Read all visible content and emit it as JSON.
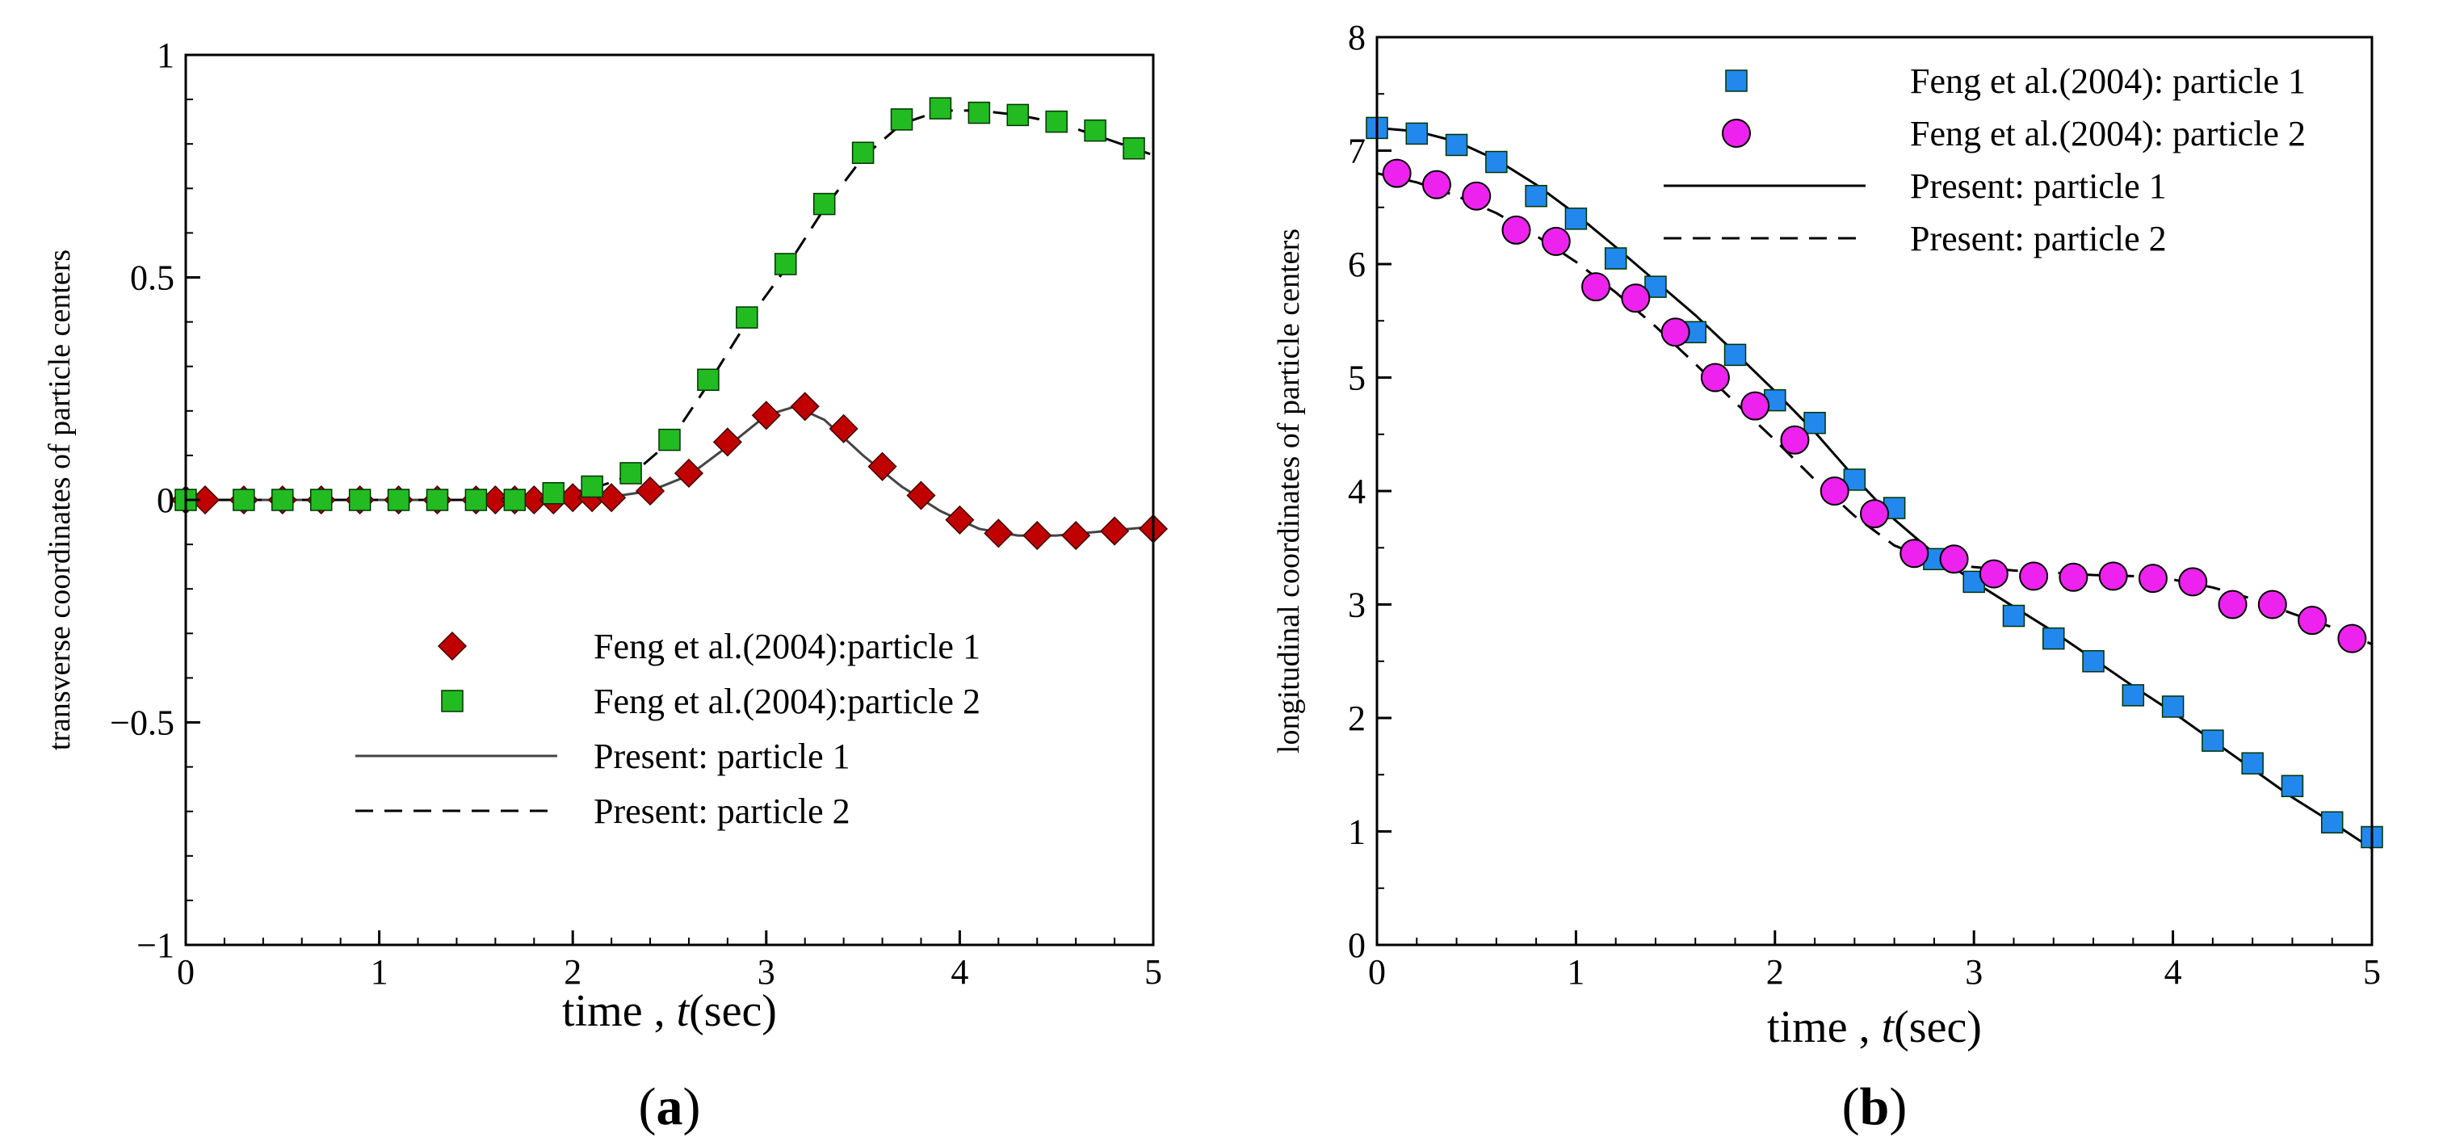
{
  "figure": {
    "panels": [
      {
        "id": "a",
        "label_open": "(",
        "label_letter": "a",
        "label_close": ")",
        "chart_data": {
          "type": "scatter",
          "title": "",
          "xlabel_prefix": "time , ",
          "xlabel_var": "t",
          "xlabel_suffix": "(sec)",
          "ylabel": "transverse coordinates of particle centers",
          "xlim": [
            0,
            5
          ],
          "ylim": [
            -1,
            1
          ],
          "xticks": [
            0,
            1,
            2,
            3,
            4,
            5
          ],
          "xtick_labels": [
            "0",
            "1",
            "2",
            "3",
            "4",
            "5"
          ],
          "yticks": [
            -1,
            -0.5,
            0,
            0.5,
            1
          ],
          "ytick_labels": [
            "−1",
            "−0.5",
            "0",
            "0.5",
            "1"
          ],
          "grid": false,
          "legend_position": "lower-right",
          "series": [
            {
              "name": "Feng et al.(2004):particle 1",
              "kind": "markers",
              "marker": "diamond",
              "color": "#c00000",
              "x": [
                0.0,
                0.1,
                0.3,
                0.5,
                0.7,
                0.9,
                1.1,
                1.3,
                1.5,
                1.6,
                1.7,
                1.8,
                1.9,
                2.0,
                2.1,
                2.2,
                2.4,
                2.6,
                2.8,
                3.0,
                3.2,
                3.4,
                3.6,
                3.8,
                4.0,
                4.2,
                4.4,
                4.6,
                4.8,
                5.0
              ],
              "y": [
                0.0,
                0.0,
                0.0,
                0.0,
                0.0,
                0.0,
                0.0,
                0.0,
                0.0,
                0.0,
                0.0,
                0.0,
                0.0,
                0.005,
                0.005,
                0.005,
                0.02,
                0.06,
                0.13,
                0.19,
                0.21,
                0.16,
                0.075,
                0.01,
                -0.045,
                -0.075,
                -0.08,
                -0.08,
                -0.07,
                -0.065
              ]
            },
            {
              "name": "Feng et al.(2004):particle 2",
              "kind": "markers",
              "marker": "square",
              "color": "#22bb22",
              "x": [
                0.0,
                0.3,
                0.5,
                0.7,
                0.9,
                1.1,
                1.3,
                1.5,
                1.7,
                1.9,
                2.1,
                2.3,
                2.5,
                2.7,
                2.9,
                3.1,
                3.3,
                3.5,
                3.7,
                3.9,
                4.1,
                4.3,
                4.5,
                4.7,
                4.9
              ],
              "y": [
                0.0,
                0.0,
                0.0,
                0.0,
                0.0,
                0.0,
                0.0,
                0.0,
                0.0,
                0.015,
                0.03,
                0.06,
                0.135,
                0.27,
                0.41,
                0.53,
                0.665,
                0.78,
                0.855,
                0.88,
                0.87,
                0.865,
                0.85,
                0.83,
                0.79
              ]
            },
            {
              "name": "Present: particle 1",
              "kind": "line",
              "dash": "solid",
              "color": "#444444",
              "x": [
                0,
                1.5,
                2.0,
                2.2,
                2.4,
                2.6,
                2.8,
                3.0,
                3.15,
                3.3,
                3.5,
                3.7,
                3.9,
                4.1,
                4.3,
                4.5,
                4.7,
                5.0
              ],
              "y": [
                0,
                0,
                0.003,
                0.007,
                0.02,
                0.055,
                0.12,
                0.19,
                0.21,
                0.18,
                0.1,
                0.03,
                -0.025,
                -0.065,
                -0.08,
                -0.08,
                -0.072,
                -0.06
              ]
            },
            {
              "name": "Present: particle 2",
              "kind": "line",
              "dash": "dashed",
              "color": "#000000",
              "x": [
                0,
                1.7,
                1.9,
                2.1,
                2.3,
                2.5,
                2.7,
                2.9,
                3.1,
                3.3,
                3.5,
                3.7,
                3.9,
                4.1,
                4.3,
                4.5,
                4.7,
                5.0
              ],
              "y": [
                0,
                0,
                0.01,
                0.025,
                0.055,
                0.13,
                0.26,
                0.4,
                0.52,
                0.655,
                0.77,
                0.845,
                0.875,
                0.875,
                0.865,
                0.848,
                0.82,
                0.775
              ]
            }
          ]
        }
      },
      {
        "id": "b",
        "label_open": "(",
        "label_letter": "b",
        "label_close": ")",
        "chart_data": {
          "type": "scatter",
          "title": "",
          "xlabel_prefix": "time , ",
          "xlabel_var": "t",
          "xlabel_suffix": "(sec)",
          "ylabel": "longitudinal coordinates of particle centers",
          "xlim": [
            0,
            5
          ],
          "ylim": [
            0,
            8
          ],
          "xticks": [
            0,
            1,
            2,
            3,
            4,
            5
          ],
          "xtick_labels": [
            "0",
            "1",
            "2",
            "3",
            "4",
            "5"
          ],
          "yticks": [
            0,
            1,
            2,
            3,
            4,
            5,
            6,
            7,
            8
          ],
          "ytick_labels": [
            "0",
            "1",
            "2",
            "3",
            "4",
            "5",
            "6",
            "7",
            "8"
          ],
          "grid": false,
          "legend_position": "top-right",
          "series": [
            {
              "name": "Feng et al.(2004): particle 1",
              "kind": "markers",
              "marker": "square",
              "color": "#2288ee",
              "x": [
                0.0,
                0.2,
                0.4,
                0.6,
                0.8,
                1.0,
                1.2,
                1.4,
                1.6,
                1.8,
                2.0,
                2.2,
                2.4,
                2.6,
                2.8,
                3.0,
                3.2,
                3.4,
                3.6,
                3.8,
                4.0,
                4.2,
                4.4,
                4.6,
                4.8,
                5.0
              ],
              "y": [
                7.2,
                7.15,
                7.05,
                6.9,
                6.6,
                6.4,
                6.05,
                5.8,
                5.4,
                5.2,
                4.8,
                4.6,
                4.1,
                3.85,
                3.4,
                3.2,
                2.9,
                2.7,
                2.5,
                2.2,
                2.1,
                1.8,
                1.6,
                1.4,
                1.08,
                0.95
              ]
            },
            {
              "name": "Feng et al.(2004): particle 2",
              "kind": "markers",
              "marker": "circle",
              "color": "#ee22ee",
              "x": [
                0.1,
                0.3,
                0.5,
                0.7,
                0.9,
                1.1,
                1.3,
                1.5,
                1.7,
                1.9,
                2.1,
                2.3,
                2.5,
                2.7,
                2.9,
                3.1,
                3.3,
                3.5,
                3.7,
                3.9,
                4.1,
                4.3,
                4.5,
                4.7,
                4.9
              ],
              "y": [
                6.8,
                6.7,
                6.6,
                6.3,
                6.2,
                5.8,
                5.7,
                5.4,
                5.0,
                4.75,
                4.45,
                4.0,
                3.8,
                3.45,
                3.4,
                3.27,
                3.25,
                3.24,
                3.25,
                3.23,
                3.2,
                3.0,
                3.0,
                2.86,
                2.7
              ]
            },
            {
              "name": "Present: particle 1",
              "kind": "line",
              "dash": "solid",
              "color": "#000000",
              "x": [
                0,
                0.2,
                0.4,
                0.6,
                0.8,
                1.0,
                1.2,
                1.4,
                1.6,
                1.8,
                2.0,
                2.2,
                2.4,
                2.6,
                2.8,
                3.0,
                3.2,
                3.4,
                3.6,
                3.8,
                4.0,
                4.2,
                4.4,
                4.6,
                4.8,
                5.0
              ],
              "y": [
                7.2,
                7.17,
                7.08,
                6.92,
                6.7,
                6.44,
                6.15,
                5.85,
                5.55,
                5.22,
                4.88,
                4.52,
                4.12,
                3.75,
                3.45,
                3.2,
                2.98,
                2.76,
                2.52,
                2.28,
                2.05,
                1.8,
                1.55,
                1.3,
                1.08,
                0.85
              ]
            },
            {
              "name": "Present: particle 2",
              "kind": "line",
              "dash": "dashed",
              "color": "#000000",
              "x": [
                0,
                0.2,
                0.4,
                0.6,
                0.8,
                1.0,
                1.2,
                1.4,
                1.6,
                1.8,
                2.0,
                2.2,
                2.4,
                2.6,
                2.8,
                2.9,
                3.0,
                3.2,
                3.4,
                3.6,
                3.8,
                4.0,
                4.2,
                4.4,
                4.6,
                4.8,
                5.0
              ],
              "y": [
                6.8,
                6.72,
                6.6,
                6.45,
                6.25,
                6.02,
                5.75,
                5.45,
                5.12,
                4.78,
                4.45,
                4.1,
                3.78,
                3.52,
                3.38,
                3.35,
                3.33,
                3.3,
                3.28,
                3.26,
                3.25,
                3.22,
                3.15,
                3.05,
                2.92,
                2.8,
                2.65
              ]
            }
          ]
        }
      }
    ]
  }
}
